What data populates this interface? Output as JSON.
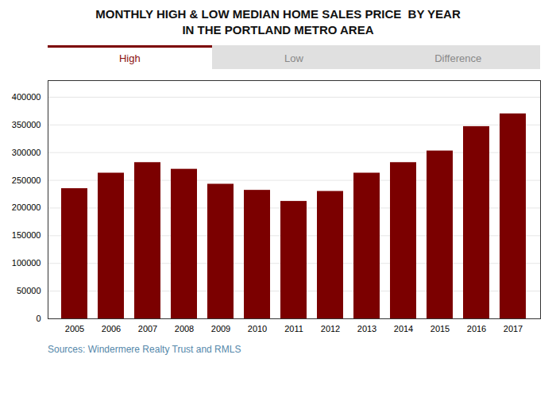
{
  "chart_data": {
    "type": "bar",
    "title": "MONTHLY HIGH & LOW MEDIAN HOME SALES PRICE  BY YEAR",
    "subtitle": "IN THE PORTLAND METRO AREA",
    "annotations": [
      "High",
      "Low",
      "Difference"
    ],
    "source": "Sources: Windermere Realty Trust and RMLS",
    "categories": [
      "2005",
      "2006",
      "2007",
      "2008",
      "2009",
      "2010",
      "2011",
      "2012",
      "2013",
      "2014",
      "2015",
      "2016",
      "2017"
    ],
    "values": [
      235000,
      263000,
      282000,
      270000,
      243000,
      232000,
      212000,
      230000,
      263000,
      282000,
      303000,
      347000,
      370000
    ],
    "color": "#7B0000",
    "ylim": [
      0,
      430000
    ],
    "yticks": [
      0,
      50000,
      100000,
      150000,
      200000,
      250000,
      300000,
      350000,
      400000
    ],
    "grid": true
  }
}
